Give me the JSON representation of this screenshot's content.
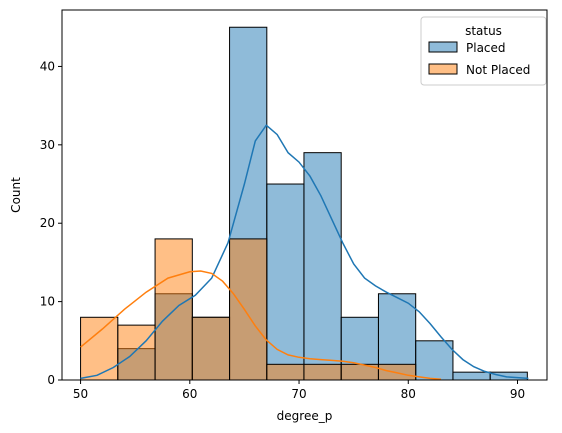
{
  "chart_data": {
    "type": "bar",
    "xlabel": "degree_p",
    "ylabel": "Count",
    "xlim": [
      48.3,
      92.7
    ],
    "ylim": [
      0,
      47.2
    ],
    "xticks": [
      50,
      60,
      70,
      80,
      90
    ],
    "yticks": [
      0,
      10,
      20,
      30,
      40
    ],
    "bin_edges": [
      50.0,
      53.41,
      56.82,
      60.23,
      63.64,
      67.05,
      70.45,
      73.86,
      77.27,
      80.68,
      84.09,
      87.5,
      90.9
    ],
    "legend": {
      "title": "status",
      "placement": "top-right"
    },
    "series": [
      {
        "name": "Placed",
        "color": "#1f77b4",
        "values": [
          0,
          4,
          11,
          8,
          45,
          25,
          29,
          8,
          11,
          5,
          1,
          1
        ],
        "kde": [
          [
            50,
            0.2
          ],
          [
            51.5,
            0.6
          ],
          [
            53,
            1.6
          ],
          [
            54.5,
            3.0
          ],
          [
            56,
            5.0
          ],
          [
            57.5,
            7.5
          ],
          [
            59,
            9.5
          ],
          [
            60.5,
            10.8
          ],
          [
            62,
            13.0
          ],
          [
            63.5,
            17.5
          ],
          [
            65,
            25.0
          ],
          [
            66,
            30.5
          ],
          [
            67,
            32.5
          ],
          [
            68,
            31.3
          ],
          [
            69,
            29.0
          ],
          [
            70,
            27.8
          ],
          [
            71,
            26.0
          ],
          [
            72,
            23.5
          ],
          [
            73,
            20.5
          ],
          [
            74,
            17.5
          ],
          [
            75,
            14.8
          ],
          [
            76,
            13.0
          ],
          [
            77,
            12.0
          ],
          [
            78,
            11.2
          ],
          [
            79,
            10.5
          ],
          [
            80,
            9.8
          ],
          [
            81,
            8.7
          ],
          [
            82,
            7.2
          ],
          [
            83,
            5.5
          ],
          [
            84,
            3.9
          ],
          [
            85,
            2.6
          ],
          [
            86,
            1.7
          ],
          [
            87,
            1.1
          ],
          [
            88,
            0.7
          ],
          [
            89,
            0.4
          ],
          [
            90,
            0.3
          ],
          [
            91,
            0.2
          ]
        ]
      },
      {
        "name": "Not Placed",
        "color": "#ff7f0e",
        "values": [
          8,
          7,
          18,
          8,
          18,
          2,
          2,
          2,
          2,
          0,
          0,
          0
        ],
        "kde": [
          [
            50,
            4.2
          ],
          [
            52,
            6.5
          ],
          [
            54,
            9.0
          ],
          [
            56,
            11.2
          ],
          [
            58,
            13.0
          ],
          [
            60,
            13.8
          ],
          [
            61,
            13.9
          ],
          [
            62,
            13.6
          ],
          [
            63,
            12.6
          ],
          [
            64,
            11.0
          ],
          [
            65,
            9.0
          ],
          [
            66,
            6.9
          ],
          [
            67,
            5.1
          ],
          [
            68,
            3.9
          ],
          [
            69,
            3.2
          ],
          [
            70,
            2.9
          ],
          [
            71,
            2.7
          ],
          [
            72,
            2.6
          ],
          [
            73,
            2.5
          ],
          [
            74,
            2.4
          ],
          [
            75,
            2.2
          ],
          [
            76,
            1.9
          ],
          [
            77,
            1.6
          ],
          [
            78,
            1.2
          ],
          [
            79,
            0.9
          ],
          [
            80,
            0.6
          ],
          [
            81,
            0.4
          ],
          [
            82,
            0.2
          ],
          [
            83,
            0.1
          ]
        ]
      }
    ]
  }
}
